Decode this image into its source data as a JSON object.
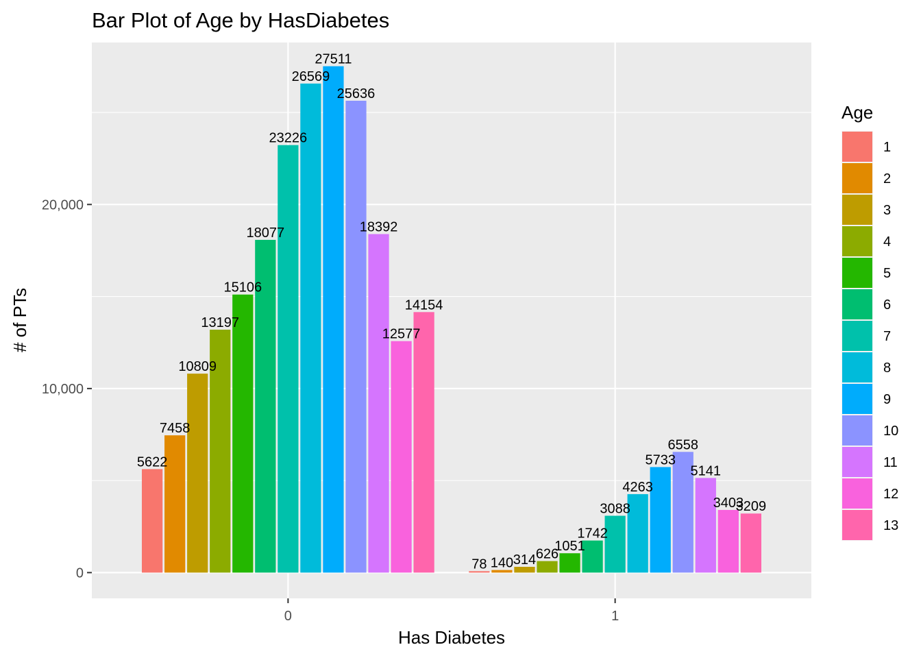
{
  "chart_data": {
    "type": "bar",
    "title": "Bar Plot of Age by HasDiabetes",
    "xlabel": "Has Diabetes",
    "ylabel": "# of PTs",
    "categories": [
      "0",
      "1"
    ],
    "ylim": [
      -1400,
      28800
    ],
    "y_ticks": [
      0,
      10000,
      20000
    ],
    "y_tick_labels": [
      "0",
      "10,000",
      "20,000"
    ],
    "grid": true,
    "legend": {
      "title": "Age",
      "position": "right"
    },
    "series": [
      {
        "name": "1",
        "color": "#F8766D",
        "values": [
          5622,
          78
        ]
      },
      {
        "name": "2",
        "color": "#E18A00",
        "values": [
          7458,
          140
        ]
      },
      {
        "name": "3",
        "color": "#BE9C00",
        "values": [
          10809,
          314
        ]
      },
      {
        "name": "4",
        "color": "#8CAB00",
        "values": [
          13197,
          626
        ]
      },
      {
        "name": "5",
        "color": "#24B700",
        "values": [
          15106,
          1051
        ]
      },
      {
        "name": "6",
        "color": "#00BE70",
        "values": [
          18077,
          1742
        ]
      },
      {
        "name": "7",
        "color": "#00C1AB",
        "values": [
          23226,
          3088
        ]
      },
      {
        "name": "8",
        "color": "#00BBDA",
        "values": [
          26569,
          4263
        ]
      },
      {
        "name": "9",
        "color": "#00ACFC",
        "values": [
          27511,
          5733
        ]
      },
      {
        "name": "10",
        "color": "#8B93FF",
        "values": [
          25636,
          6558
        ]
      },
      {
        "name": "11",
        "color": "#D575FE",
        "values": [
          18392,
          5141
        ]
      },
      {
        "name": "12",
        "color": "#F962DD",
        "values": [
          12577,
          3403
        ]
      },
      {
        "name": "13",
        "color": "#FF65AC",
        "values": [
          14154,
          3209
        ]
      }
    ]
  }
}
